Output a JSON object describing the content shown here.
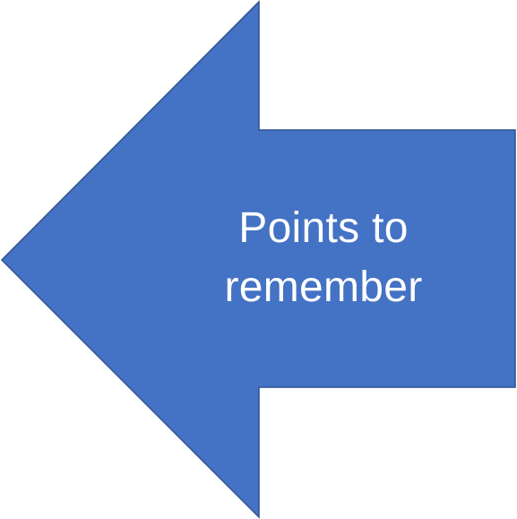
{
  "shape": {
    "type": "left-arrow",
    "fill_color": "#4472c4",
    "stroke_color": "#2f528f"
  },
  "label": {
    "line1": "Points to",
    "line2": "remember"
  }
}
